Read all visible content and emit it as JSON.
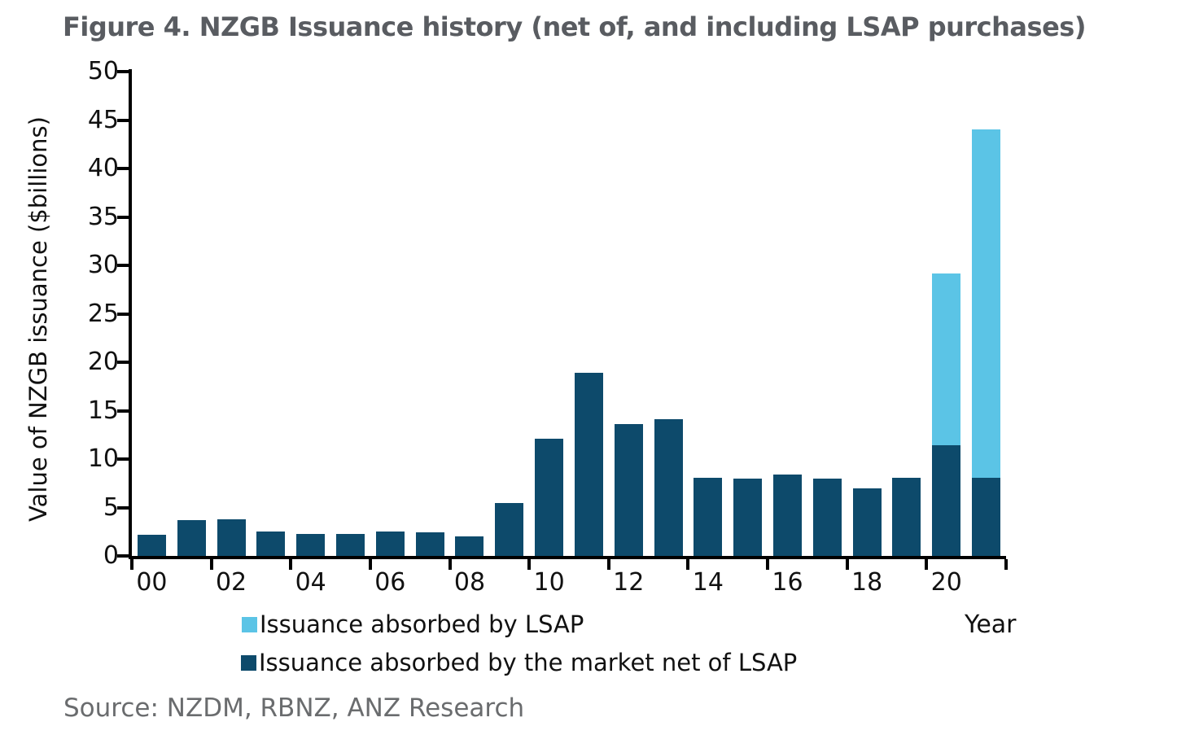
{
  "figure": {
    "title": "Figure 4. NZGB Issuance history (net of, and including LSAP purchases)",
    "source": "Source: NZDM, RBNZ, ANZ Research"
  },
  "chart_data": {
    "type": "bar",
    "stacked": true,
    "title": "Figure 4. NZGB Issuance history (net of, and including LSAP purchases)",
    "xlabel": "Year",
    "ylabel": "Value of NZGB issuance ($billions)",
    "ylim": [
      0,
      50
    ],
    "ytick_step": 5,
    "ytick_labels": [
      "0",
      "5",
      "10",
      "15",
      "20",
      "25",
      "30",
      "35",
      "40",
      "45",
      "50"
    ],
    "grid": false,
    "legend_position": "below-left",
    "categories": [
      "00",
      "01",
      "02",
      "03",
      "04",
      "05",
      "06",
      "07",
      "08",
      "09",
      "10",
      "11",
      "12",
      "13",
      "14",
      "15",
      "16",
      "17",
      "18",
      "19",
      "20",
      "21"
    ],
    "xtick_labels": [
      "00",
      "02",
      "04",
      "06",
      "08",
      "10",
      "12",
      "14",
      "16",
      "18",
      "20"
    ],
    "series": [
      {
        "name": "Issuance absorbed by the market net of LSAP",
        "role": "net",
        "color": "#0d4a6b",
        "values": [
          2.2,
          3.7,
          3.8,
          2.5,
          2.3,
          2.3,
          2.5,
          2.4,
          2.0,
          5.5,
          12.1,
          18.9,
          13.6,
          14.1,
          8.1,
          8.0,
          8.4,
          8.0,
          7.0,
          8.1,
          11.4,
          8.1
        ]
      },
      {
        "name": "Issuance absorbed by LSAP",
        "role": "lsap",
        "color": "#5bc4e6",
        "values": [
          0,
          0,
          0,
          0,
          0,
          0,
          0,
          0,
          0,
          0,
          0,
          0,
          0,
          0,
          0,
          0,
          0,
          0,
          0,
          0,
          17.7,
          36.0
        ]
      }
    ],
    "legend": [
      {
        "label": "Issuance absorbed by LSAP",
        "color": "#5bc4e6"
      },
      {
        "label": "Issuance absorbed by the market net of LSAP",
        "color": "#0d4a6b"
      }
    ]
  },
  "colors": {
    "bar_dark": "#0d4a6b",
    "bar_light": "#5bc4e6",
    "axis": "#000000",
    "title_text": "#595c61",
    "source_text": "#6a6c6e"
  }
}
